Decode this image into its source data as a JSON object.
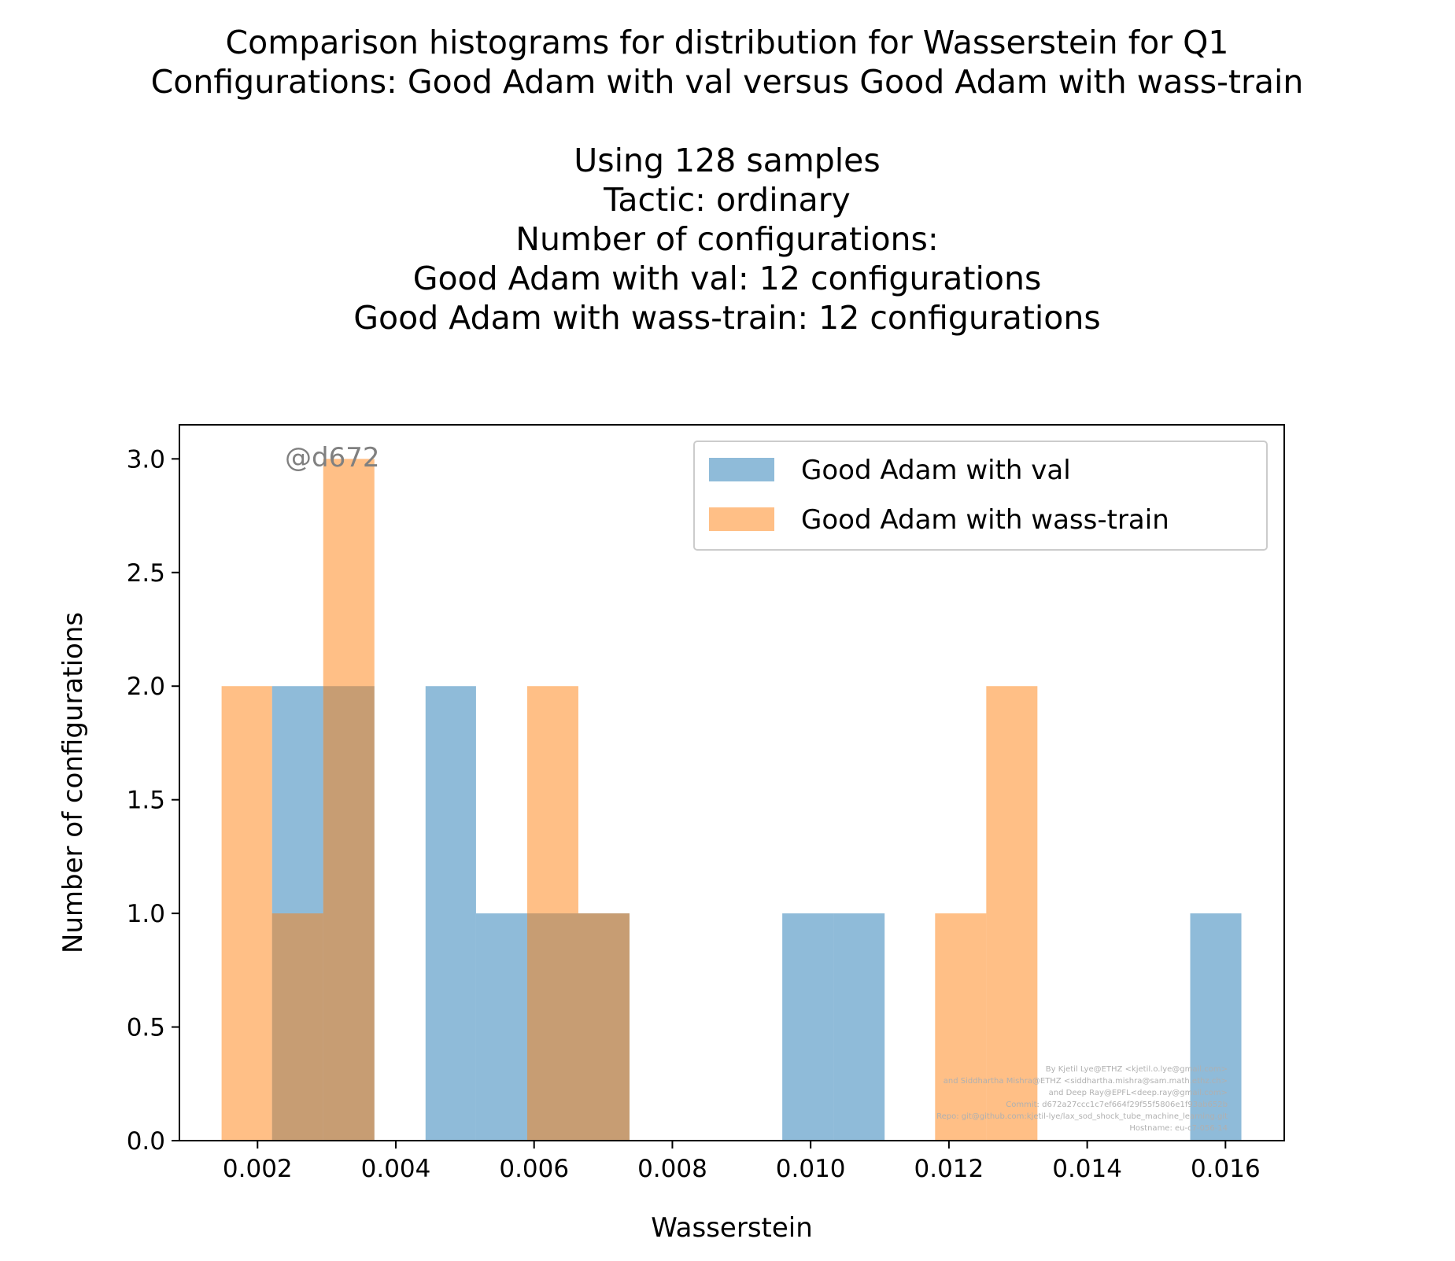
{
  "title_lines": [
    "Comparison histograms for distribution for Wasserstein for Q1",
    "Configurations: Good Adam with val versus Good Adam with wass-train",
    "",
    "Using 128 samples",
    "Tactic: ordinary",
    "Number of configurations:",
    "Good Adam with val: 12 configurations",
    "Good Adam with wass-train: 12 configurations"
  ],
  "watermark": "@d672",
  "credits": [
    "By Kjetil Lye@ETHZ <kjetil.o.lye@gmail.com>",
    "and Siddhartha Mishra@ETHZ <siddhartha.mishra@sam.math.ethz.ch>",
    "and Deep Ray@EPFL<deep.ray@gmail.com>",
    "Commit: d672a27ccc1c7ef664f29f55f5806e1f93ab652b",
    "Repo: git@github.com:kjetil-lye/lax_sod_shock_tube_machine_learning.git",
    "Hostname: eu-c7-056-14"
  ],
  "colors": {
    "series_1": "#1f77b4",
    "series_2": "#ff7f0e"
  },
  "chart_data": {
    "type": "bar",
    "subtype": "overlaid-histogram",
    "xlabel": "Wasserstein",
    "ylabel": "Number of configurations",
    "xlim": [
      0.00087,
      0.01685
    ],
    "ylim": [
      0,
      3.15
    ],
    "xticks": [
      "0.002",
      "0.004",
      "0.006",
      "0.008",
      "0.010",
      "0.012",
      "0.014",
      "0.016"
    ],
    "yticks": [
      "0.0",
      "0.5",
      "1.0",
      "1.5",
      "2.0",
      "2.5",
      "3.0"
    ],
    "bar_opacity": 0.5,
    "legend_position": "upper right",
    "grid": false,
    "series": [
      {
        "name": "Good Adam with val",
        "color": "#1f77b4",
        "bins": [
          {
            "x0": 0.00221,
            "x1": 0.00295,
            "count": 2
          },
          {
            "x0": 0.00295,
            "x1": 0.00369,
            "count": 2
          },
          {
            "x0": 0.00443,
            "x1": 0.00516,
            "count": 2
          },
          {
            "x0": 0.00516,
            "x1": 0.0059,
            "count": 1
          },
          {
            "x0": 0.0059,
            "x1": 0.00664,
            "count": 1
          },
          {
            "x0": 0.00664,
            "x1": 0.00738,
            "count": 1
          },
          {
            "x0": 0.00959,
            "x1": 0.01033,
            "count": 1
          },
          {
            "x0": 0.01033,
            "x1": 0.01107,
            "count": 1
          },
          {
            "x0": 0.01549,
            "x1": 0.01623,
            "count": 1
          }
        ]
      },
      {
        "name": "Good Adam with wass-train",
        "color": "#ff7f0e",
        "bins": [
          {
            "x0": 0.00148,
            "x1": 0.00221,
            "count": 2
          },
          {
            "x0": 0.00221,
            "x1": 0.00295,
            "count": 1
          },
          {
            "x0": 0.00295,
            "x1": 0.00369,
            "count": 3
          },
          {
            "x0": 0.0059,
            "x1": 0.00664,
            "count": 2
          },
          {
            "x0": 0.00664,
            "x1": 0.00738,
            "count": 1
          },
          {
            "x0": 0.0118,
            "x1": 0.01254,
            "count": 1
          },
          {
            "x0": 0.01254,
            "x1": 0.01328,
            "count": 2
          }
        ]
      }
    ]
  }
}
